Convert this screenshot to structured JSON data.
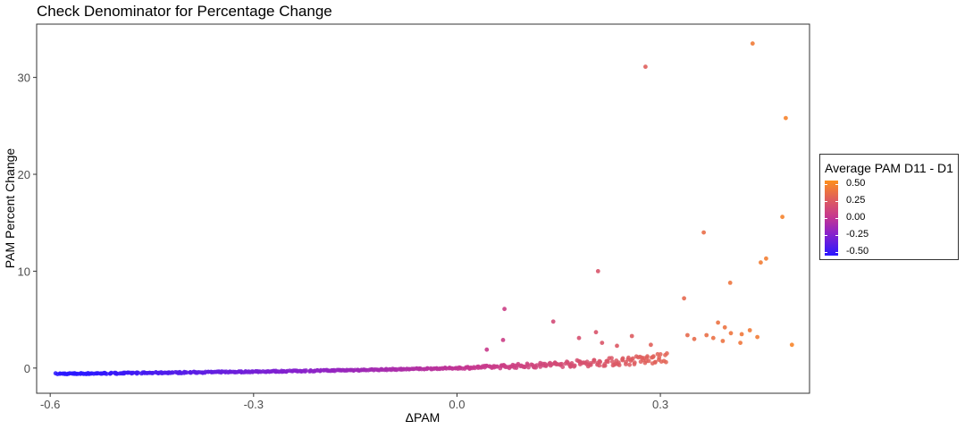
{
  "chart_data": {
    "type": "scatter",
    "title": "Check Denominator for Percentage Change",
    "xlabel": "ΔPAM",
    "ylabel": "PAM Percent Change",
    "xlim": [
      -0.62,
      0.52
    ],
    "ylim": [
      -2.6,
      35.5
    ],
    "x_ticks": [
      -0.6,
      -0.3,
      0.0,
      0.3
    ],
    "x_tick_labels": [
      "-0.6",
      "-0.3",
      "0.0",
      "0.3"
    ],
    "y_ticks": [
      0,
      10,
      20,
      30
    ],
    "y_tick_labels": [
      "0",
      "10",
      "20",
      "30"
    ],
    "grid": false,
    "color_legend": {
      "title": "Average PAM D11 - D1",
      "labels": [
        "0.50",
        "0.25",
        "0.00",
        "-0.25",
        "-0.50"
      ],
      "values": [
        0.5,
        0.25,
        0.0,
        -0.25,
        -0.5
      ],
      "low_color": "#2a17ff",
      "mid_color": "#c6378f",
      "high_color": "#fd8f1d",
      "placement": "right"
    },
    "outlier_points": [
      {
        "x": 0.436,
        "y": 33.5
      },
      {
        "x": 0.278,
        "y": 31.1
      },
      {
        "x": 0.485,
        "y": 25.8
      },
      {
        "x": 0.48,
        "y": 15.6
      },
      {
        "x": 0.364,
        "y": 14.0
      },
      {
        "x": 0.456,
        "y": 11.3
      },
      {
        "x": 0.448,
        "y": 10.9
      },
      {
        "x": 0.208,
        "y": 10.0
      },
      {
        "x": 0.403,
        "y": 8.8
      },
      {
        "x": 0.335,
        "y": 7.2
      },
      {
        "x": 0.07,
        "y": 6.1
      },
      {
        "x": 0.142,
        "y": 4.8
      },
      {
        "x": 0.385,
        "y": 4.7
      },
      {
        "x": 0.395,
        "y": 4.2
      },
      {
        "x": 0.432,
        "y": 3.9
      },
      {
        "x": 0.42,
        "y": 3.5
      },
      {
        "x": 0.404,
        "y": 3.6
      },
      {
        "x": 0.205,
        "y": 3.7
      },
      {
        "x": 0.34,
        "y": 3.4
      },
      {
        "x": 0.368,
        "y": 3.4
      },
      {
        "x": 0.378,
        "y": 3.1
      },
      {
        "x": 0.443,
        "y": 3.2
      },
      {
        "x": 0.35,
        "y": 3.0
      },
      {
        "x": 0.392,
        "y": 2.8
      },
      {
        "x": 0.418,
        "y": 2.6
      },
      {
        "x": 0.494,
        "y": 2.4
      },
      {
        "x": 0.258,
        "y": 3.3
      },
      {
        "x": 0.18,
        "y": 3.1
      },
      {
        "x": 0.068,
        "y": 2.9
      },
      {
        "x": 0.044,
        "y": 1.9
      },
      {
        "x": 0.214,
        "y": 2.6
      },
      {
        "x": 0.236,
        "y": 2.3
      },
      {
        "x": 0.286,
        "y": 2.4
      }
    ],
    "main_band": {
      "description": "dense cloud of points following y ≈ 100·x/(1−x) trend",
      "x_range": [
        -0.59,
        0.31
      ]
    }
  }
}
